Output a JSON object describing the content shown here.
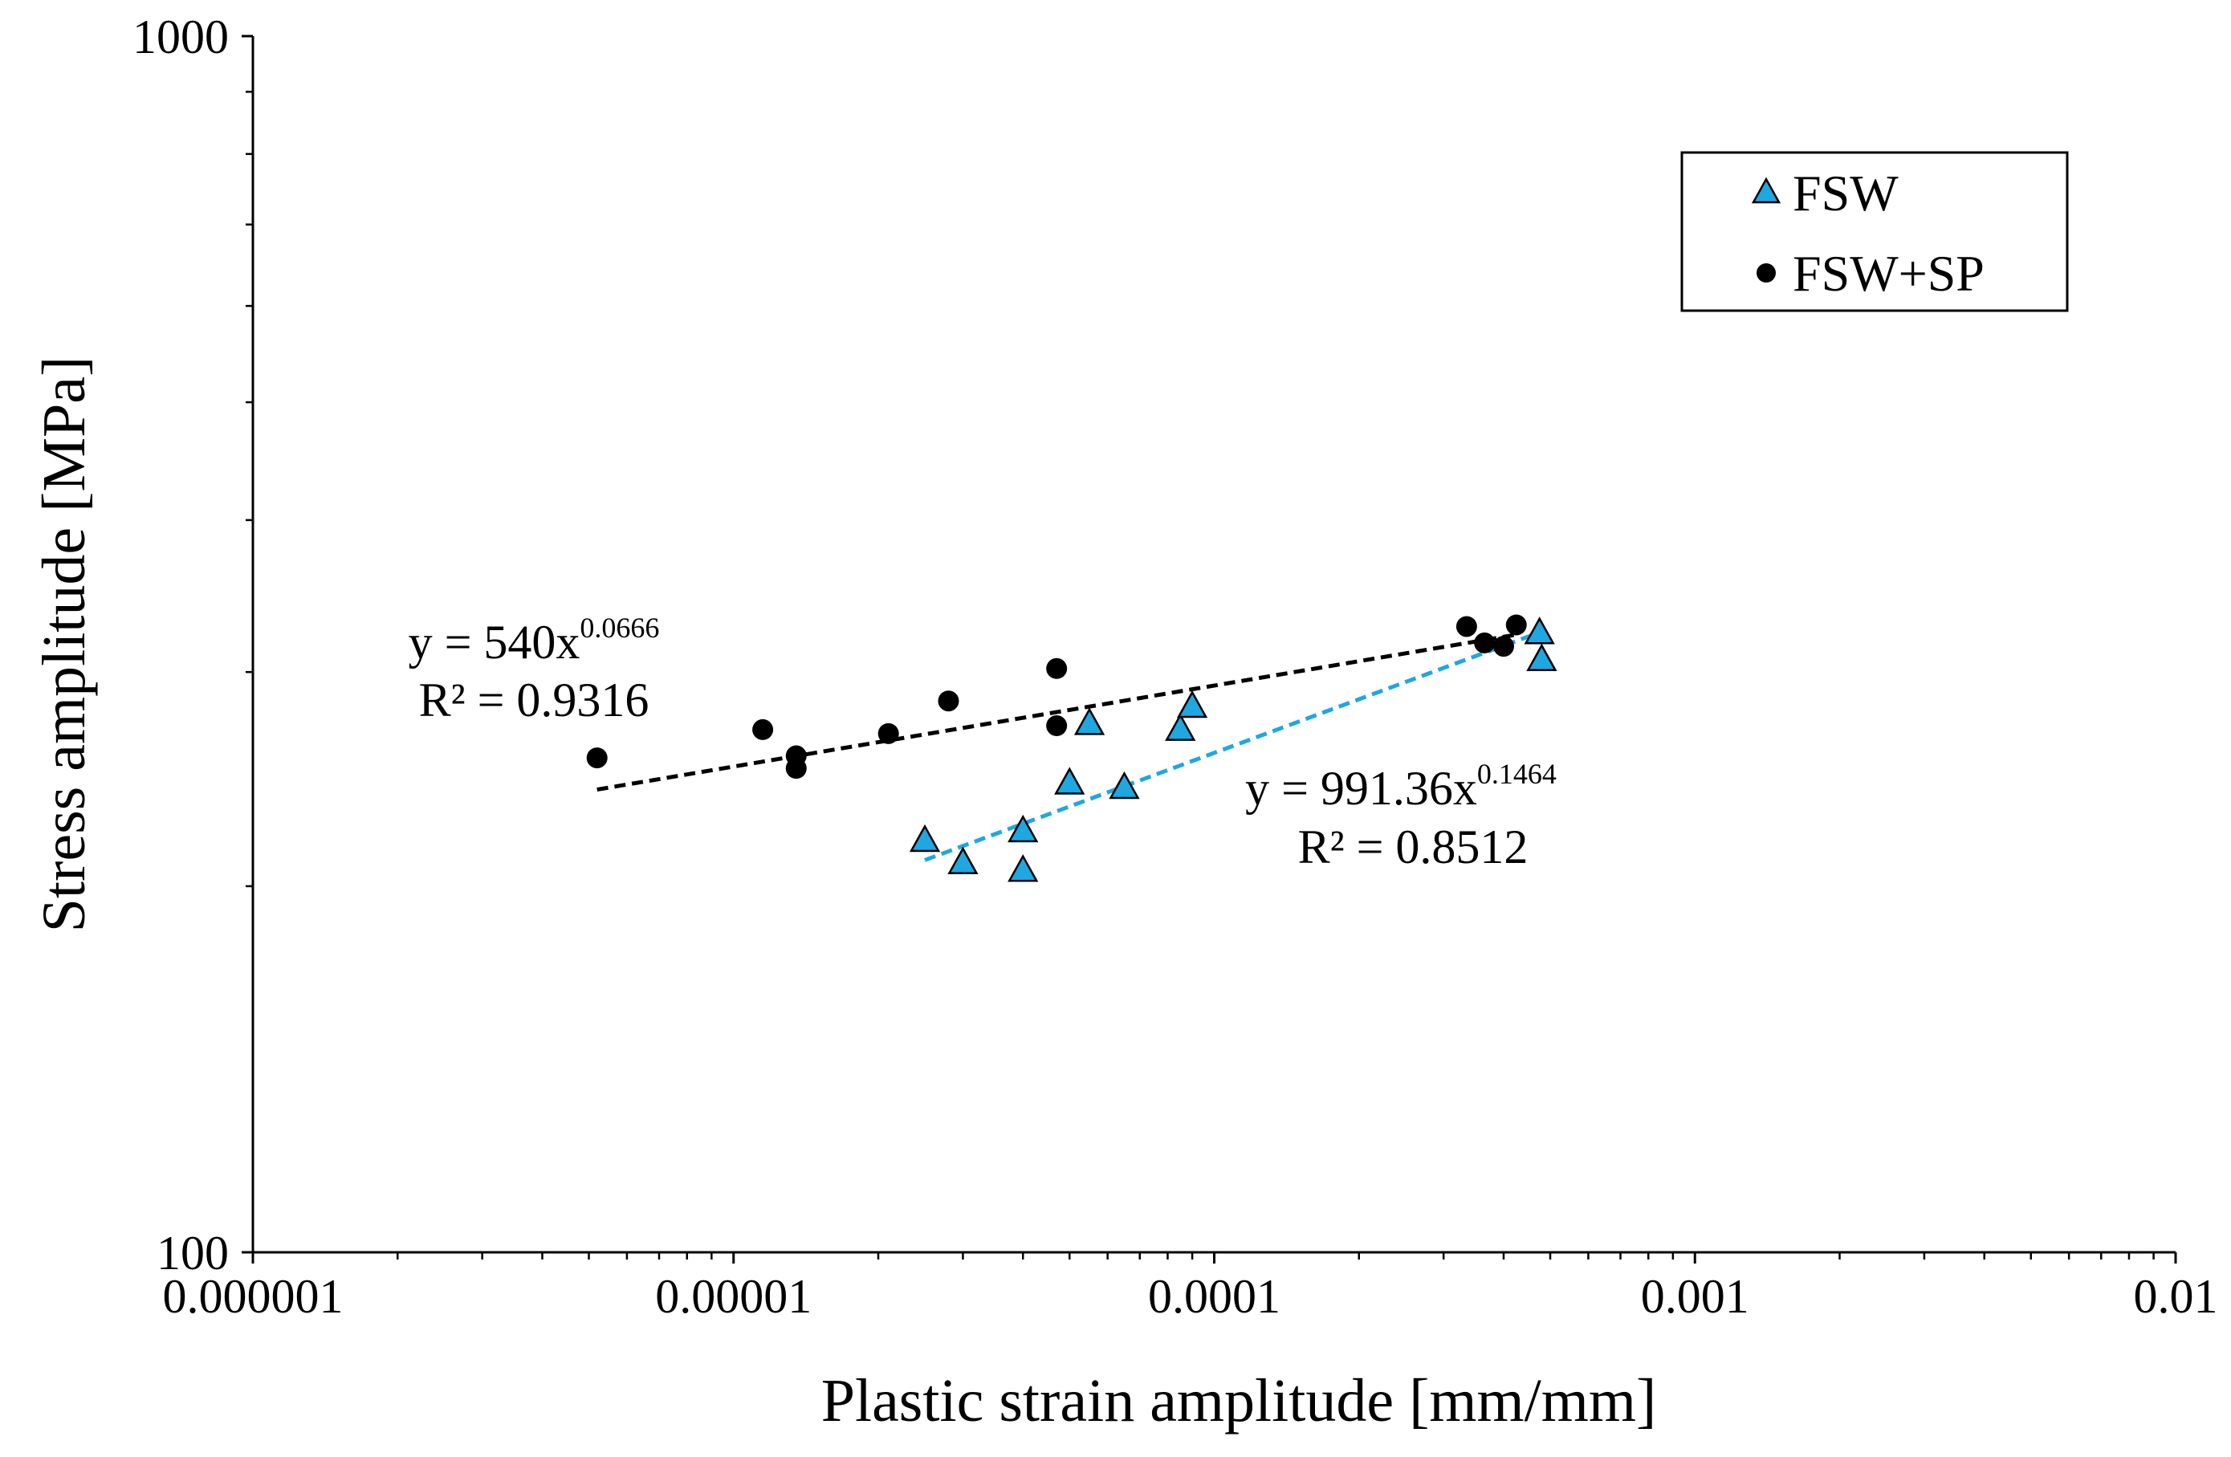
{
  "chart_data": {
    "type": "scatter",
    "xscale": "log",
    "yscale": "log",
    "xlabel": "Plastic strain amplitude [mm/mm]",
    "ylabel": "Stress amplitude [MPa]",
    "xlim": [
      1e-06,
      0.01
    ],
    "ylim": [
      100,
      1000
    ],
    "xtick_labels": [
      "0.000001",
      "0.00001",
      "0.0001",
      "0.001",
      "0.01"
    ],
    "ytick_labels": [
      "100",
      "1000"
    ],
    "legend_position": "top-right",
    "series": [
      {
        "name": "FSW",
        "marker": "triangle",
        "color": "#1FA7E1",
        "trendline_color": "#1FA7E1",
        "x": [
          2.5e-05,
          3e-05,
          4e-05,
          4e-05,
          5e-05,
          5.5e-05,
          6.5e-05,
          8.5e-05,
          9e-05,
          0.000475,
          0.00048
        ],
        "y": [
          218,
          209,
          206,
          222,
          243,
          272,
          241,
          269,
          281,
          323,
          307
        ],
        "trendline": {
          "a": 991.36,
          "b": 0.1464,
          "x_range": [
            2.5e-05,
            0.00047
          ],
          "equation_base": "y = 991.36x",
          "equation_exp": "0.1464",
          "r2_text": "R² = 0.8512"
        }
      },
      {
        "name": "FSW+SP",
        "marker": "circle",
        "color": "#000000",
        "trendline_color": "#000000",
        "x": [
          5.2e-06,
          1.15e-05,
          1.35e-05,
          1.35e-05,
          2.1e-05,
          2.8e-05,
          4.7e-05,
          4.7e-05,
          0.000335,
          0.000365,
          0.0004,
          0.000425
        ],
        "y": [
          255,
          269,
          256,
          250,
          267,
          284,
          302,
          271,
          327,
          317,
          315,
          328
        ],
        "trendline": {
          "a": 540,
          "b": 0.0666,
          "x_range": [
            5.2e-06,
            0.00042
          ],
          "equation_base": "y = 540x",
          "equation_exp": "0.0666",
          "r2_text": "R² = 0.9316"
        }
      }
    ]
  }
}
